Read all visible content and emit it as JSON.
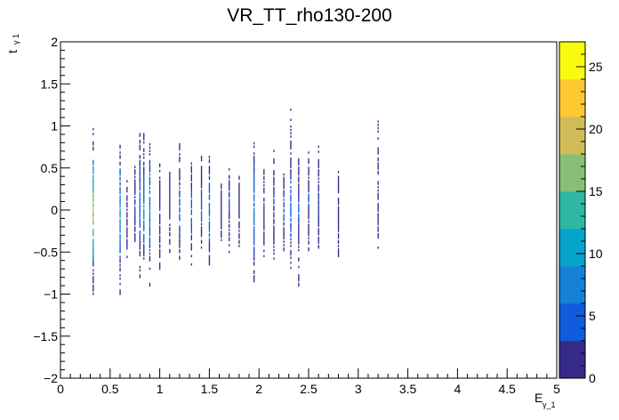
{
  "chart_data": {
    "type": "heatmap",
    "title": "VR_TT_rho130-200",
    "xlabel": {
      "main": "E",
      "sub": "γ_1"
    },
    "ylabel": {
      "main": "t",
      "sub": "γ 1"
    },
    "xlim": [
      0,
      5
    ],
    "ylim": [
      -2,
      2
    ],
    "x_tick_labels": [
      "0",
      "0.5",
      "1",
      "1.5",
      "2",
      "2.5",
      "3",
      "3.5",
      "4",
      "4.5",
      "5"
    ],
    "y_tick_labels": [
      "−2",
      "−1.5",
      "−1",
      "−0.5",
      "0",
      "0.5",
      "1",
      "1.5",
      "2"
    ],
    "z_range": [
      0,
      27
    ],
    "z_tick_labels": [
      "0",
      "5",
      "10",
      "15",
      "20",
      "25"
    ],
    "palette": [
      "#352a87",
      "#0f5cdd",
      "#1481d6",
      "#06a4ca",
      "#2eb7a4",
      "#87bf77",
      "#d1bb59",
      "#fec832",
      "#f9fb0e"
    ],
    "columns": [
      {
        "x": 0.33,
        "y": [
          -1.0,
          1.05
        ],
        "core": [
          -0.6,
          0.6
        ],
        "peak": 24
      },
      {
        "x": 0.6,
        "y": [
          -1.02,
          0.8
        ],
        "core": [
          -0.6,
          0.5
        ],
        "peak": 12
      },
      {
        "x": 0.67,
        "y": [
          -0.6,
          0.35
        ],
        "core": [
          -0.4,
          0.2
        ],
        "peak": 3
      },
      {
        "x": 0.75,
        "y": [
          -0.55,
          0.65
        ],
        "core": [
          -0.4,
          0.5
        ],
        "peak": 4
      },
      {
        "x": 0.8,
        "y": [
          -0.8,
          0.92
        ],
        "core": [
          -0.5,
          0.6
        ],
        "peak": 8
      },
      {
        "x": 0.84,
        "y": [
          -0.7,
          0.9
        ],
        "core": [
          -0.5,
          0.6
        ],
        "peak": 9
      },
      {
        "x": 0.9,
        "y": [
          -0.9,
          0.78
        ],
        "core": [
          -0.6,
          0.6
        ],
        "peak": 10
      },
      {
        "x": 1.0,
        "y": [
          -0.7,
          0.55
        ],
        "core": [
          -0.5,
          0.4
        ],
        "peak": 4
      },
      {
        "x": 1.1,
        "y": [
          -0.5,
          0.5
        ],
        "core": [
          -0.3,
          0.4
        ],
        "peak": 3
      },
      {
        "x": 1.2,
        "y": [
          -0.6,
          0.8
        ],
        "core": [
          -0.5,
          0.5
        ],
        "peak": 6
      },
      {
        "x": 1.32,
        "y": [
          -0.65,
          0.6
        ],
        "core": [
          -0.5,
          0.5
        ],
        "peak": 6
      },
      {
        "x": 1.42,
        "y": [
          -0.45,
          0.65
        ],
        "core": [
          -0.4,
          0.5
        ],
        "peak": 5
      },
      {
        "x": 1.5,
        "y": [
          -0.65,
          0.65
        ],
        "core": [
          -0.5,
          0.5
        ],
        "peak": 8
      },
      {
        "x": 1.62,
        "y": [
          -0.4,
          0.4
        ],
        "core": [
          -0.3,
          0.3
        ],
        "peak": 3
      },
      {
        "x": 1.7,
        "y": [
          -0.5,
          0.5
        ],
        "core": [
          -0.4,
          0.4
        ],
        "peak": 4
      },
      {
        "x": 1.8,
        "y": [
          -0.45,
          0.4
        ],
        "core": [
          -0.3,
          0.3
        ],
        "peak": 3
      },
      {
        "x": 1.95,
        "y": [
          -0.85,
          0.8
        ],
        "core": [
          -0.6,
          0.6
        ],
        "peak": 9
      },
      {
        "x": 2.05,
        "y": [
          -0.55,
          0.5
        ],
        "core": [
          -0.4,
          0.4
        ],
        "peak": 4
      },
      {
        "x": 2.15,
        "y": [
          -0.6,
          0.75
        ],
        "core": [
          -0.4,
          0.5
        ],
        "peak": 4
      },
      {
        "x": 2.25,
        "y": [
          -0.5,
          0.55
        ],
        "core": [
          -0.4,
          0.4
        ],
        "peak": 5
      },
      {
        "x": 2.32,
        "y": [
          -0.75,
          1.23
        ],
        "core": [
          -0.5,
          0.6
        ],
        "peak": 6
      },
      {
        "x": 2.4,
        "y": [
          -0.9,
          0.6
        ],
        "core": [
          -0.4,
          0.5
        ],
        "peak": 5
      },
      {
        "x": 2.5,
        "y": [
          -0.5,
          0.7
        ],
        "core": [
          -0.3,
          0.5
        ],
        "peak": 4
      },
      {
        "x": 2.6,
        "y": [
          -0.45,
          0.75
        ],
        "core": [
          -0.4,
          0.5
        ],
        "peak": 4
      },
      {
        "x": 2.8,
        "y": [
          -0.55,
          0.45
        ],
        "core": [
          -0.4,
          0.4
        ],
        "peak": 3
      },
      {
        "x": 3.2,
        "y": [
          -0.45,
          1.05
        ],
        "core": [
          -0.3,
          0.25
        ],
        "peak": 2
      }
    ]
  }
}
